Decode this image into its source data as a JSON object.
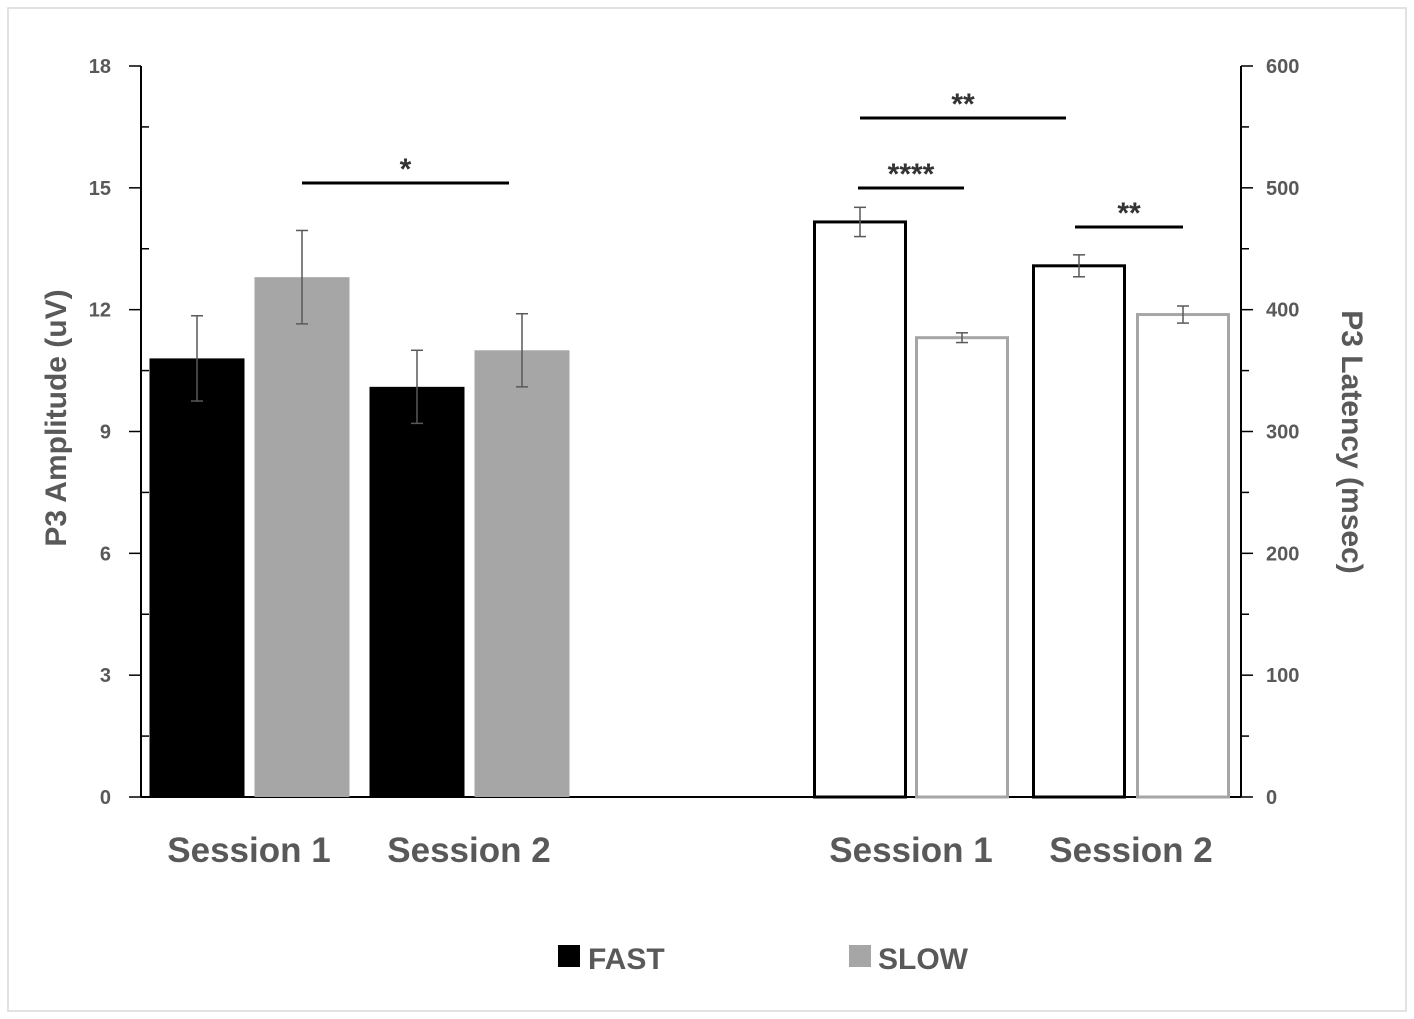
{
  "chart_data": {
    "type": "bar",
    "legend": {
      "placement": "bottom-center",
      "entries": [
        {
          "label": "FAST",
          "color": "#000000"
        },
        {
          "label": "SLOW",
          "color": "#a6a6a6"
        }
      ]
    },
    "panels": [
      {
        "name": "amplitude",
        "axis": "left",
        "ylabel": "P3 Amplitude (uV)",
        "ylim": [
          0,
          18
        ],
        "ticks": [
          "0",
          "3",
          "6",
          "9",
          "12",
          "15",
          "18"
        ],
        "fill_style": "solid",
        "categories": [
          "Session 1",
          "Session 2"
        ],
        "series": [
          {
            "name": "FAST",
            "values": [
              10.8,
              10.1
            ],
            "errors": [
              1.05,
              0.9
            ],
            "color": "#000000"
          },
          {
            "name": "SLOW",
            "values": [
              12.8,
              11.0
            ],
            "errors": [
              1.15,
              0.9
            ],
            "color": "#a6a6a6"
          }
        ],
        "significance": [
          {
            "from": [
              0,
              1
            ],
            "to": [
              1,
              1
            ],
            "label": "*"
          }
        ]
      },
      {
        "name": "latency",
        "axis": "right",
        "ylabel": "P3 Latency (msec)",
        "ylim": [
          0,
          600
        ],
        "ticks": [
          "0",
          "100",
          "200",
          "300",
          "400",
          "500",
          "600"
        ],
        "fill_style": "outline",
        "categories": [
          "Session 1",
          "Session 2"
        ],
        "series": [
          {
            "name": "FAST",
            "values": [
              472,
              436
            ],
            "errors": [
              12,
              9
            ],
            "color": "#000000"
          },
          {
            "name": "SLOW",
            "values": [
              377,
              396
            ],
            "errors": [
              4,
              7
            ],
            "color": "#a6a6a6"
          }
        ],
        "significance": [
          {
            "from": [
              0,
              0
            ],
            "to": [
              0,
              1
            ],
            "label": "****"
          },
          {
            "from": [
              0,
              0
            ],
            "to": [
              1,
              0
            ],
            "label": "**"
          },
          {
            "from": [
              1,
              0
            ],
            "to": [
              1,
              1
            ],
            "label": "**"
          }
        ]
      }
    ]
  }
}
